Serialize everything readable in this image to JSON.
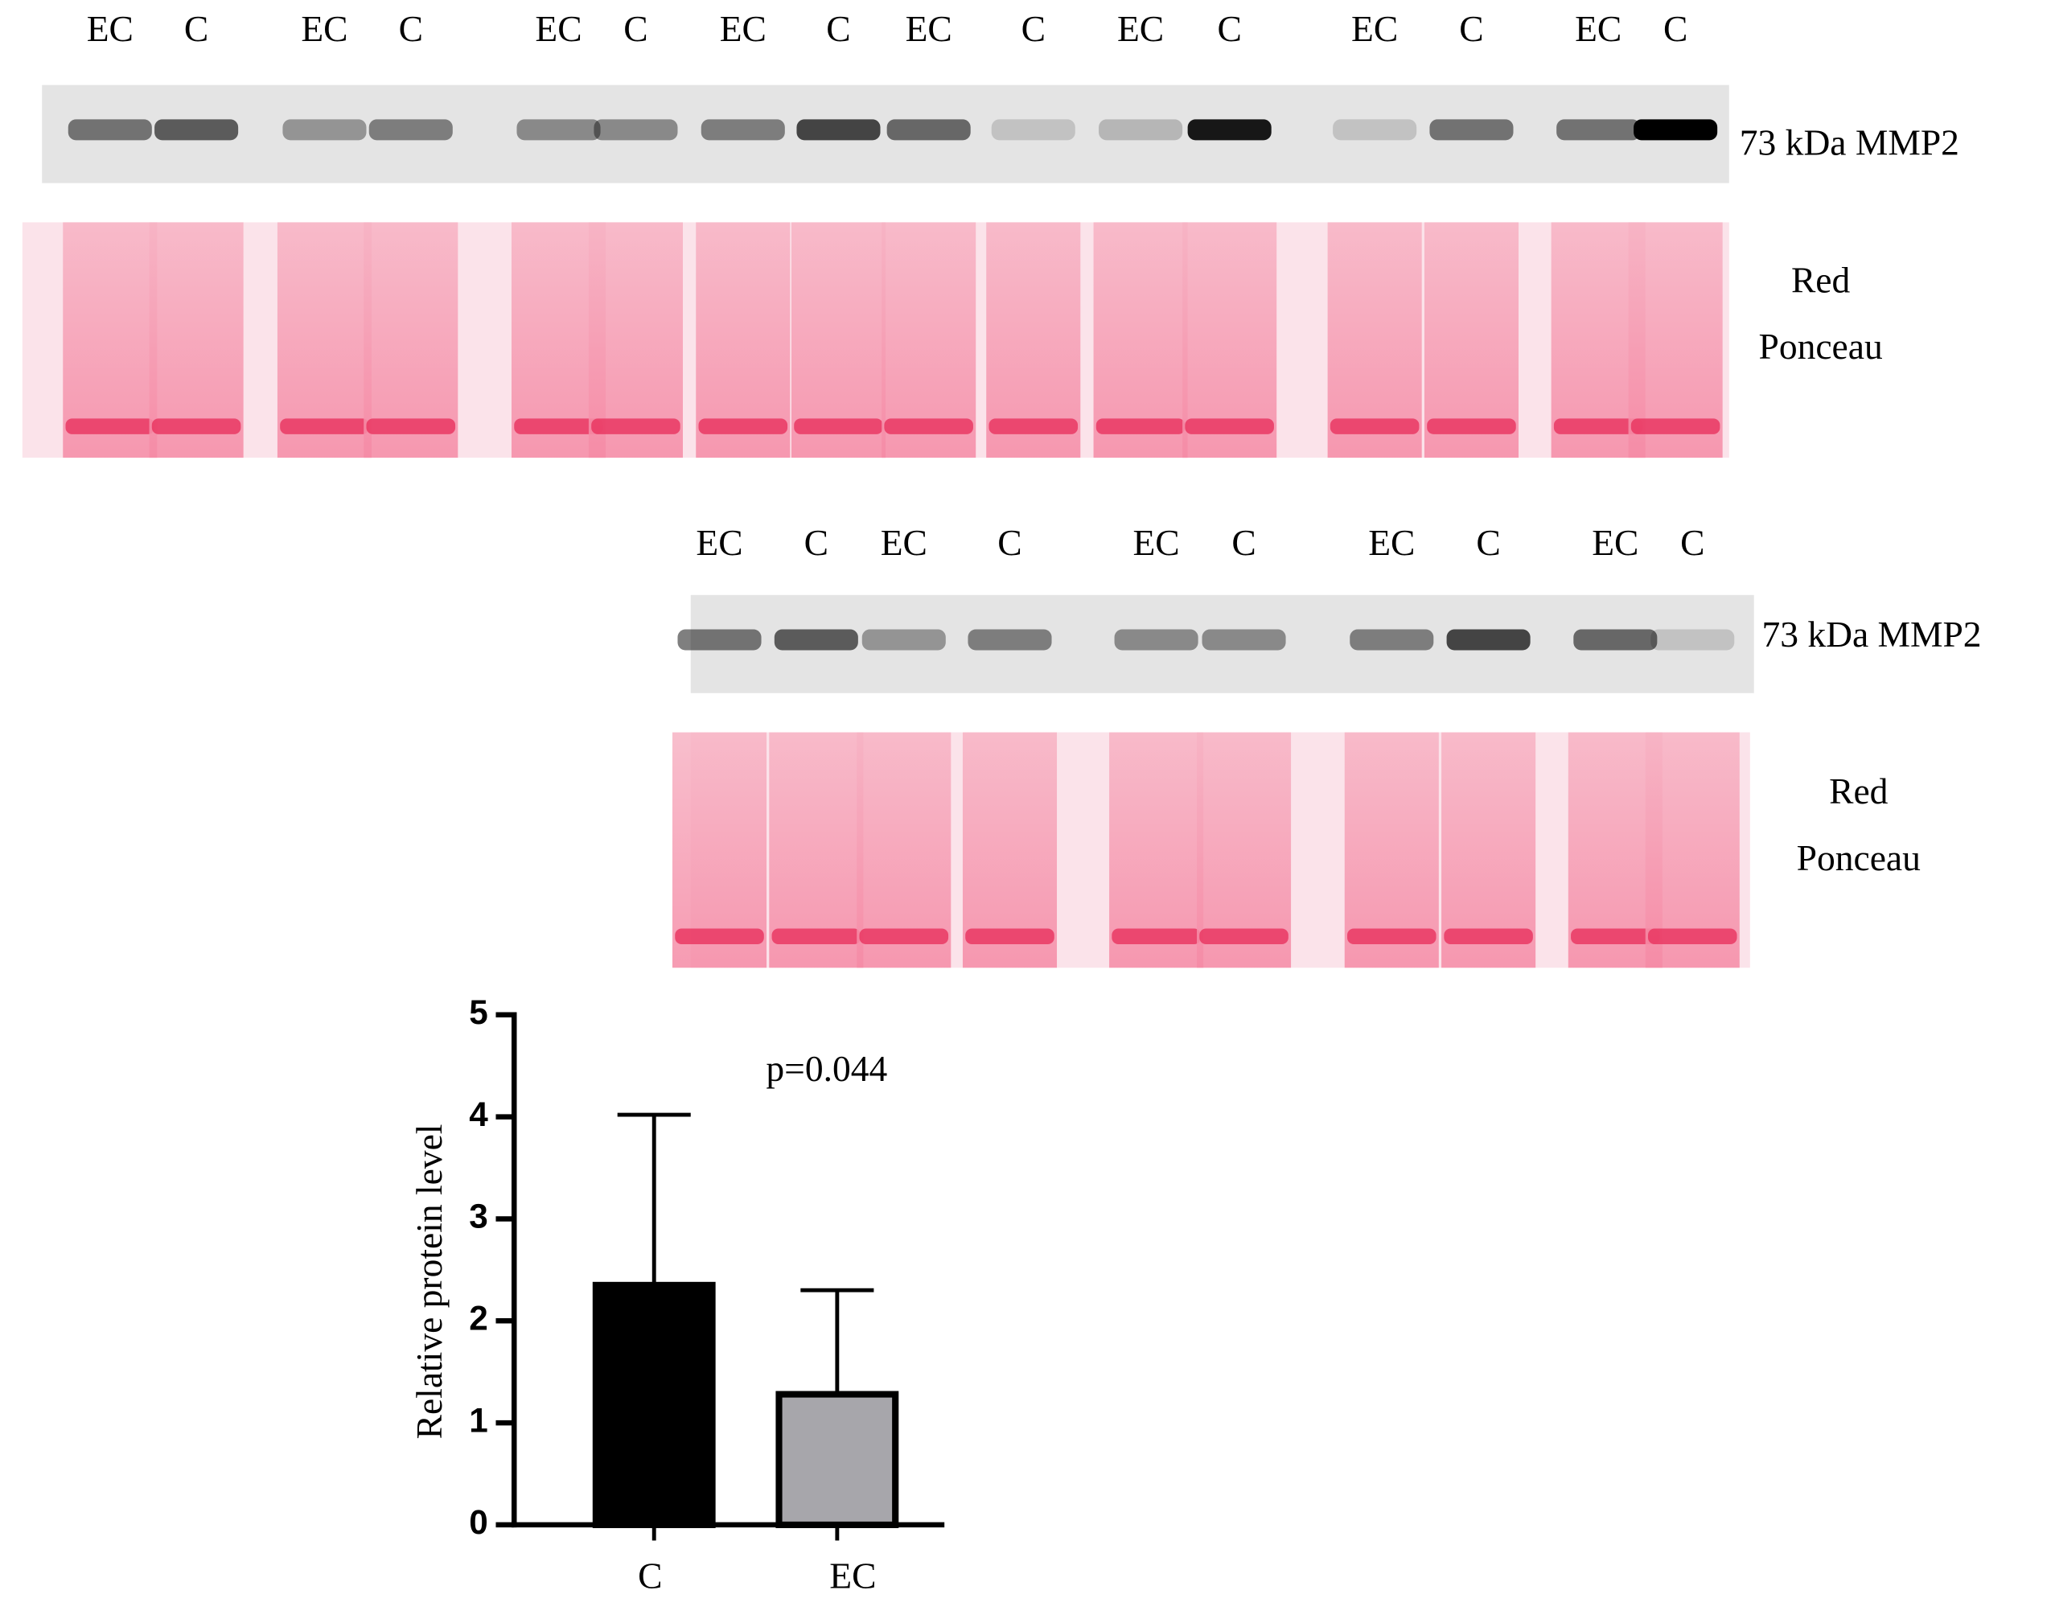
{
  "blots": [
    {
      "lanes": [
        "EC",
        "C",
        "EC",
        "C",
        "EC",
        "C",
        "EC",
        "C",
        "EC",
        "C",
        "EC",
        "C",
        "EC",
        "C",
        "EC",
        "C"
      ],
      "band_label": "73 kDa MMP2",
      "stain_label": [
        "Red",
        "Ponceau"
      ]
    },
    {
      "lanes": [
        "EC",
        "C",
        "EC",
        "C",
        "EC",
        "C",
        "EC",
        "C",
        "EC",
        "C"
      ],
      "band_label": "73 kDa MMP2",
      "stain_label": [
        "Red",
        "Ponceau"
      ]
    }
  ],
  "chart_data": {
    "type": "bar",
    "y_label": "Relative protein level",
    "annotation": "p=0.044",
    "categories": [
      "C",
      "EC"
    ],
    "values": [
      2.35,
      1.28
    ],
    "errors": [
      1.67,
      1.02
    ],
    "colors": [
      "#000000",
      "#a7a6ab"
    ],
    "ylim": [
      0,
      5
    ],
    "yticks": [
      0,
      1,
      2,
      3,
      4,
      5
    ]
  }
}
